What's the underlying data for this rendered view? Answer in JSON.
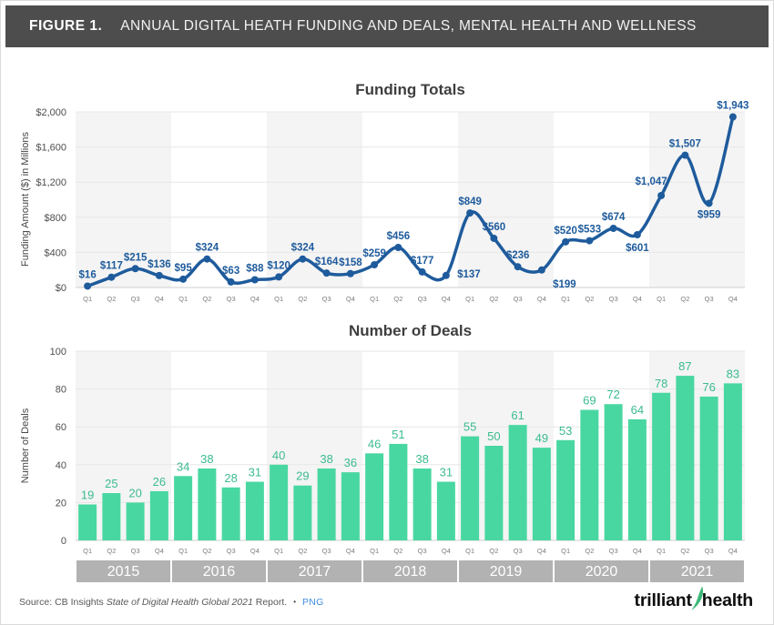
{
  "header": {
    "figure_label": "FIGURE 1.",
    "title": "ANNUAL DIGITAL HEATH FUNDING AND DEALS, MENTAL HEALTH AND WELLNESS"
  },
  "chart_data": [
    {
      "id": "funding",
      "type": "line",
      "title": "Funding Totals",
      "ylabel": "Funding Amount ($) in Millions",
      "ylim": [
        0,
        2000
      ],
      "ytick_values": [
        0,
        400,
        800,
        1200,
        1600,
        2000
      ],
      "ytick_labels": [
        "$0",
        "$400",
        "$800",
        "$1,200",
        "$1,600",
        "$2,000"
      ],
      "years": [
        "2015",
        "2016",
        "2017",
        "2018",
        "2019",
        "2020",
        "2021"
      ],
      "quarters": [
        "Q1",
        "Q2",
        "Q3",
        "Q4"
      ],
      "values": [
        16,
        117,
        215,
        136,
        95,
        324,
        63,
        88,
        120,
        324,
        164,
        158,
        259,
        456,
        177,
        137,
        849,
        560,
        236,
        199,
        520,
        533,
        674,
        601,
        1047,
        1507,
        959,
        1943
      ],
      "labels": [
        "$16",
        "$117",
        "$215",
        "$136",
        "$95",
        "$324",
        "$63",
        "$88",
        "$120",
        "$324",
        "$164",
        "$158",
        "$259",
        "$456",
        "$177",
        "$137",
        "$849",
        "$560",
        "$236",
        "$199",
        "$520",
        "$533",
        "$674",
        "$601",
        "$1,047",
        "$1,507",
        "$959",
        "$1,943"
      ],
      "label_offsets": {
        "15": [
          25,
          2
        ],
        "19": [
          25,
          19
        ],
        "23": [
          0,
          18
        ],
        "24": [
          -11,
          -12
        ],
        "26": [
          0,
          16
        ]
      },
      "grid": true,
      "legend": "none"
    },
    {
      "id": "deals",
      "type": "bar",
      "title": "Number of Deals",
      "ylabel": "Number of Deals",
      "ylim": [
        0,
        100
      ],
      "ytick_values": [
        0,
        20,
        40,
        60,
        80,
        100
      ],
      "ytick_labels": [
        "0",
        "20",
        "40",
        "60",
        "80",
        "100"
      ],
      "years": [
        "2015",
        "2016",
        "2017",
        "2018",
        "2019",
        "2020",
        "2021"
      ],
      "quarters": [
        "Q1",
        "Q2",
        "Q3",
        "Q4"
      ],
      "values": [
        19,
        25,
        20,
        26,
        34,
        38,
        28,
        31,
        40,
        29,
        38,
        36,
        46,
        51,
        38,
        31,
        55,
        50,
        61,
        49,
        53,
        69,
        72,
        64,
        78,
        87,
        76,
        83
      ],
      "labels": [
        "19",
        "25",
        "20",
        "26",
        "34",
        "38",
        "28",
        "31",
        "40",
        "29",
        "38",
        "36",
        "46",
        "51",
        "38",
        "31",
        "55",
        "50",
        "61",
        "49",
        "53",
        "69",
        "72",
        "64",
        "78",
        "87",
        "76",
        "83"
      ],
      "grid": true,
      "legend": "none"
    }
  ],
  "footer": {
    "source_prefix": "Source: CB Insights ",
    "source_italic": "State of Digital Health Global 2021",
    "source_suffix": " Report.",
    "separator": "•",
    "png_link": "PNG",
    "logo_word_1": "trilliant",
    "logo_word_2": "health"
  },
  "colors": {
    "header_bg": "#4d4d4d",
    "header_text": "#f2f2f2",
    "line_blue": "#1e5b9c",
    "bar_green": "#49d7a1",
    "bar_label_green": "#3cbb8e",
    "year_band_fill": "#f4f4f4",
    "gridline": "#e7e7e7",
    "zero_axis": "#cfcfcf",
    "year_axis_bg": "#b2b2b2",
    "year_axis_text": "#ffffff",
    "tick_text": "#4f4f4f",
    "quarter_text": "#7d7d7d",
    "chart_title_text": "#3e3e3e",
    "source_text": "#585858",
    "link_blue": "#3e8ede",
    "logo_green": "#3cb878",
    "logo_text": "#0e0e0e"
  }
}
